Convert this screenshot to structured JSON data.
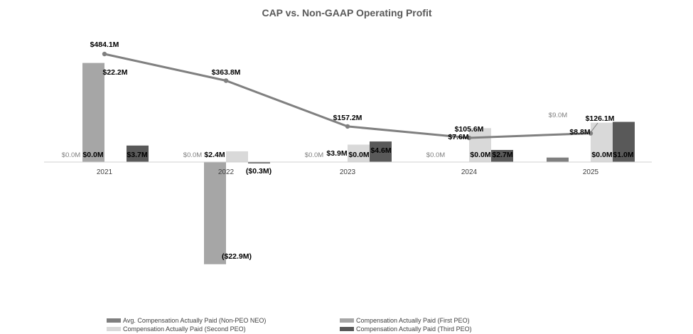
{
  "chart_data": {
    "type": "bar",
    "title": "CAP vs. Non-GAAP Operating Profit",
    "categories": [
      "2021",
      "2022",
      "2023",
      "2024",
      "2025"
    ],
    "series": [
      {
        "name": "Avg. Compensation Actually Paid (Non-PEO NEO)",
        "color": "#7f7f7f",
        "values": [
          0.0,
          0.0,
          0.0,
          0.0,
          1.0
        ],
        "labels": [
          "$0.0M",
          "$0.0M",
          "$0.0M",
          "$0.0M",
          "$1.0M"
        ]
      },
      {
        "name": "Compensation Actually Paid (First PEO)",
        "color": "#a6a6a6",
        "values": [
          22.2,
          -22.9,
          0.0,
          0.0,
          0.0
        ],
        "labels": [
          "$22.2M",
          "($22.9M)",
          "$0.0M",
          "$0.0M",
          "$0.0M"
        ]
      },
      {
        "name": "Compensation Actually Paid (Second PEO)",
        "color": "#d9d9d9",
        "values": [
          0.0,
          2.4,
          3.9,
          7.6,
          8.8
        ],
        "labels": [
          "$0.0M",
          "$2.4M",
          "$3.9M",
          "$7.6M",
          "$8.8M"
        ]
      },
      {
        "name": "Compensation Actually Paid (Third PEO)",
        "color": "#595959",
        "values": [
          3.7,
          -0.3,
          4.6,
          2.7,
          9.0
        ],
        "labels": [
          "$3.7M",
          "($0.3M)",
          "$4.6M",
          "$2.7M",
          "$9.0M"
        ]
      }
    ],
    "line": {
      "color": "#808080",
      "values": [
        484.1,
        363.8,
        157.2,
        105.6,
        126.1
      ],
      "labels": [
        "$484.1M",
        "$363.8M",
        "$157.2M",
        "$105.6M",
        "$126.1M"
      ]
    },
    "legend_position": "bottom",
    "grid": false
  }
}
